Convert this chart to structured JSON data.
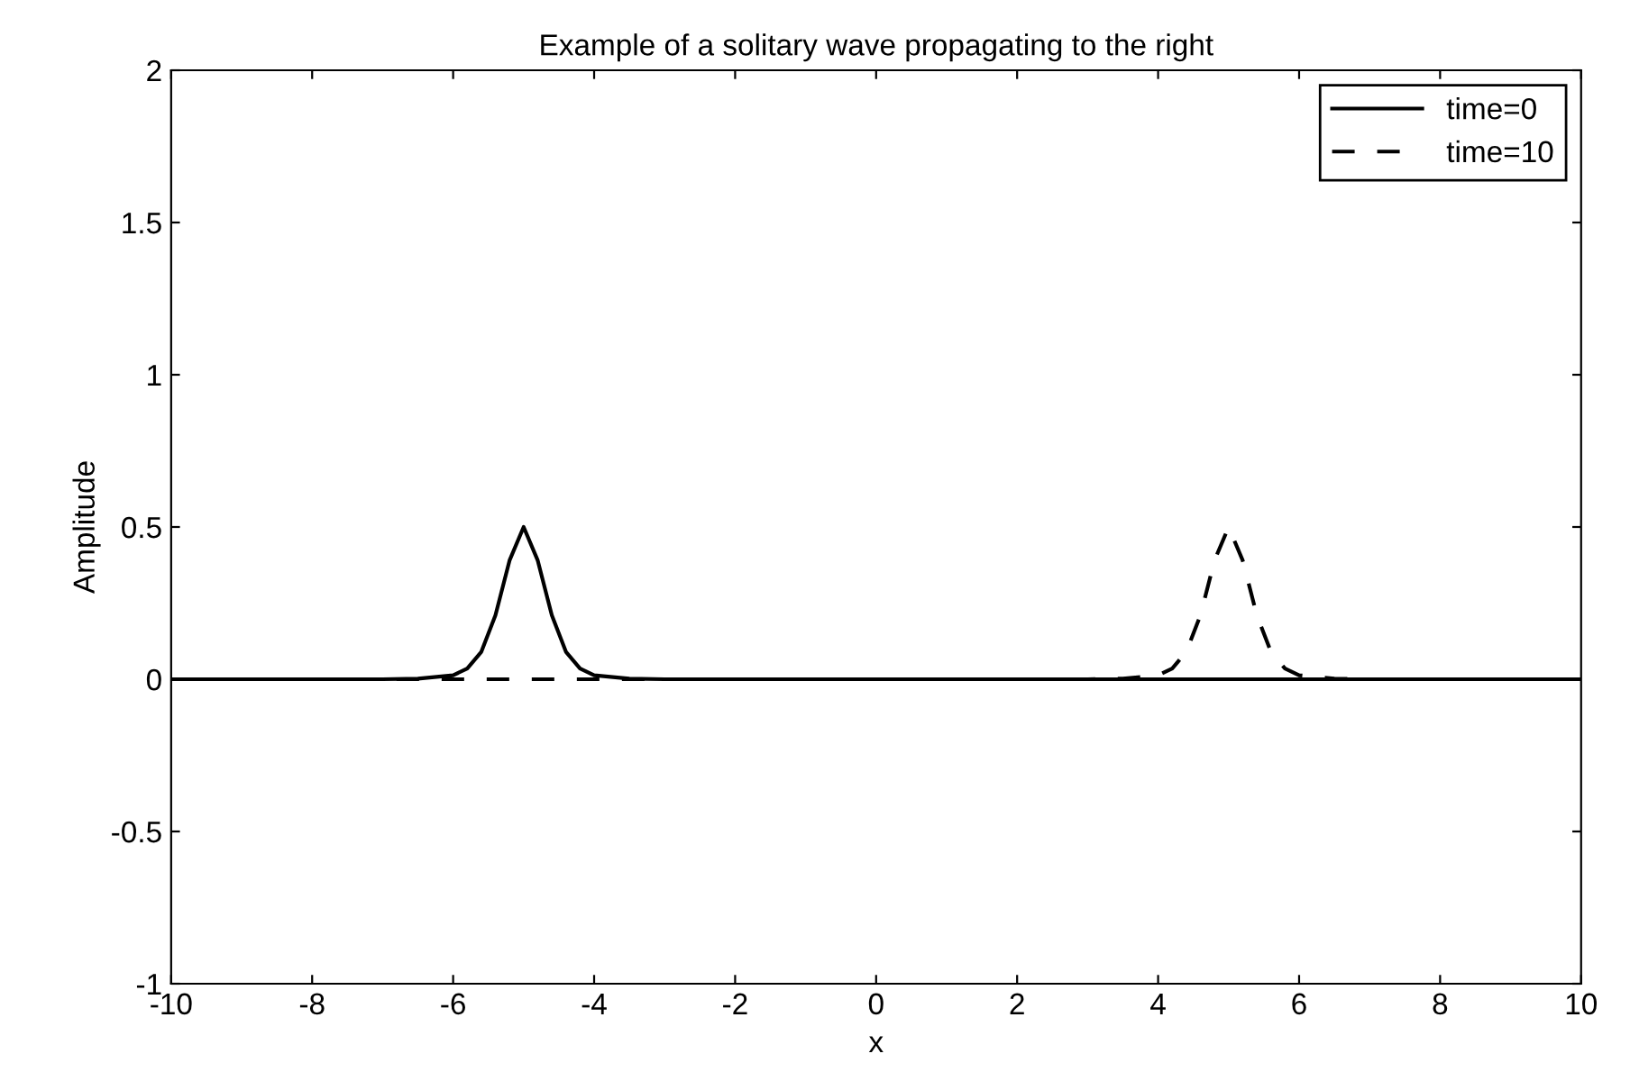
{
  "chart_data": {
    "type": "line",
    "title": "Example of a solitary wave propagating to the right",
    "xlabel": "x",
    "ylabel": "Amplitude",
    "series": [
      {
        "name": "time=0",
        "color": "#000000",
        "line_style": "solid",
        "x": [
          -10,
          -7,
          -6.5,
          -6,
          -5.8,
          -5.6,
          -5.4,
          -5.2,
          -5,
          -4.8,
          -4.6,
          -4.4,
          -4.2,
          -4,
          -3.5,
          -3,
          10
        ],
        "values": [
          0,
          0,
          0.002,
          0.013,
          0.035,
          0.09,
          0.21,
          0.39,
          0.5,
          0.39,
          0.21,
          0.09,
          0.035,
          0.013,
          0.002,
          0,
          0
        ]
      },
      {
        "name": "time=10",
        "color": "#000000",
        "line_style": "dashed",
        "x": [
          -10,
          3,
          3.5,
          4,
          4.2,
          4.4,
          4.6,
          4.8,
          5,
          5.2,
          5.4,
          5.6,
          5.8,
          6,
          6.5,
          7,
          10
        ],
        "values": [
          0,
          0,
          0.002,
          0.013,
          0.035,
          0.09,
          0.21,
          0.39,
          0.5,
          0.39,
          0.21,
          0.09,
          0.035,
          0.013,
          0.002,
          0,
          0
        ]
      }
    ],
    "xlim": [
      -10,
      10
    ],
    "ylim": [
      -1,
      2
    ],
    "xticks": [
      -10,
      -8,
      -6,
      -4,
      -2,
      0,
      2,
      4,
      6,
      8,
      10
    ],
    "yticks": [
      -1,
      -0.5,
      0,
      0.5,
      1,
      1.5,
      2
    ],
    "grid": false,
    "legend": "top right",
    "marker": "none"
  }
}
